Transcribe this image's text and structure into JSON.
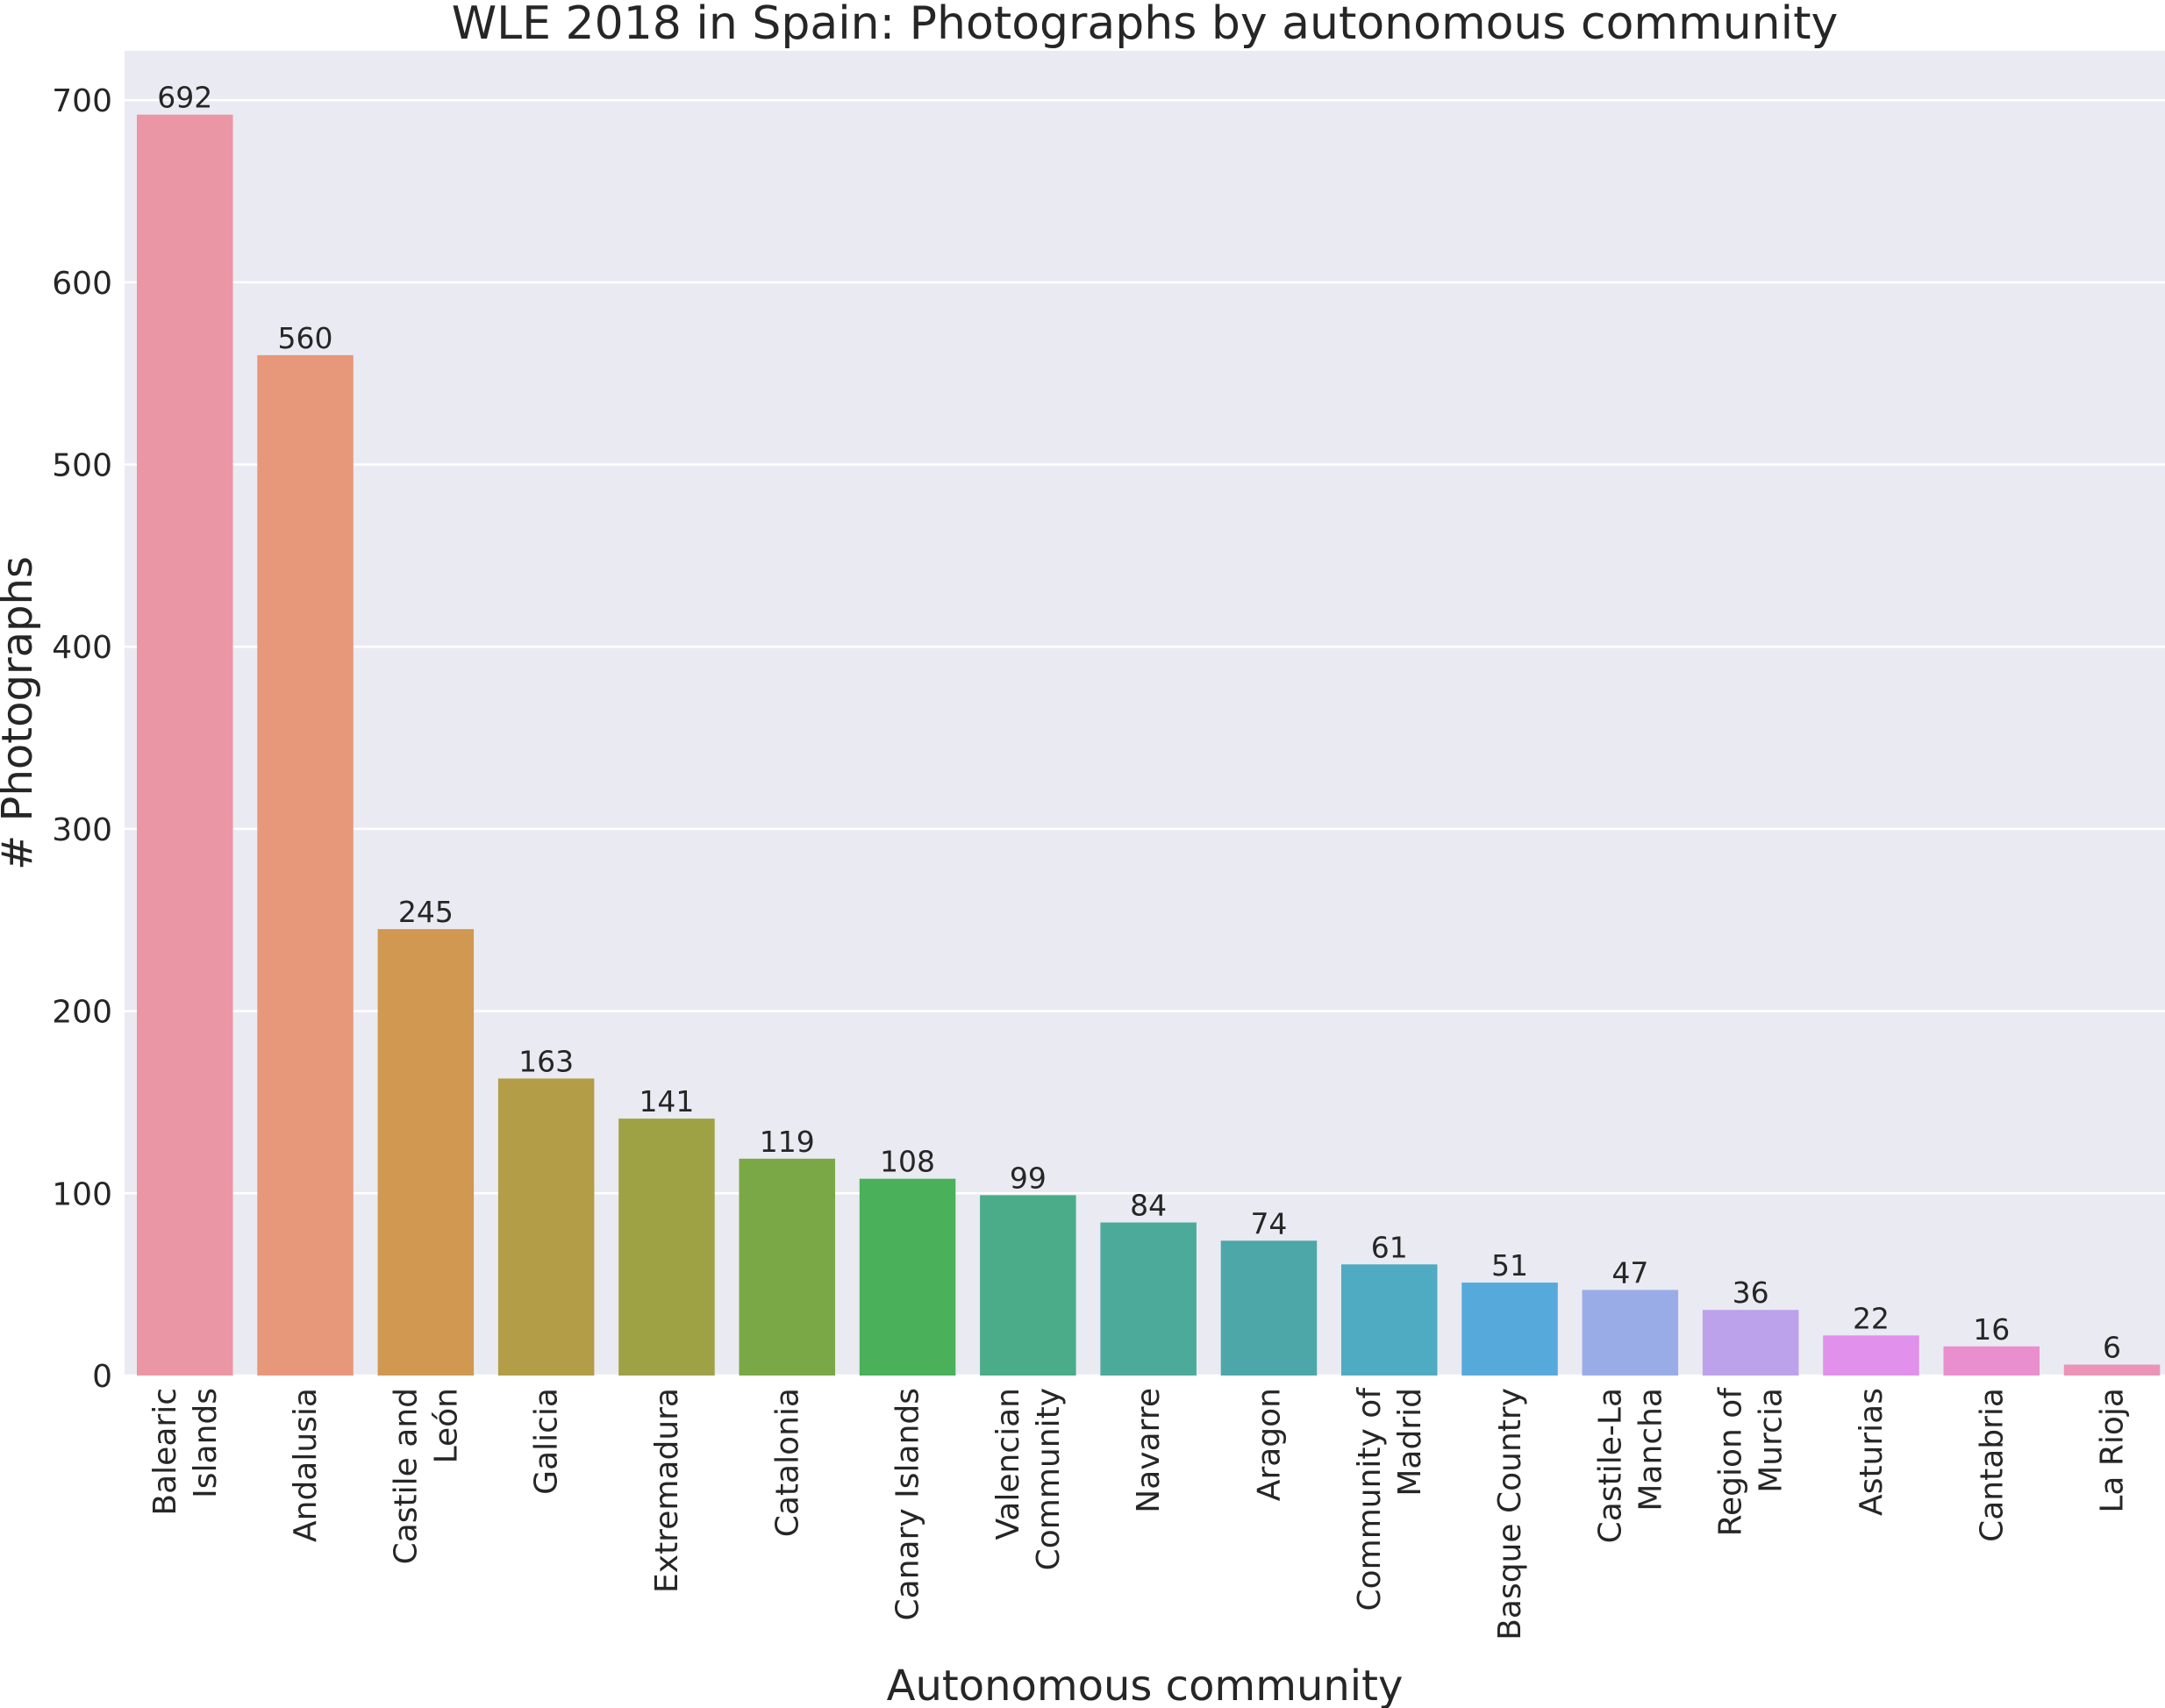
{
  "chart_data": {
    "type": "bar",
    "title": "WLE 2018 in Spain: Photographs by autonomous community",
    "xlabel": "Autonomous community",
    "ylabel": "# Photographs",
    "ylim": [
      0,
      727
    ],
    "yticks": [
      0,
      100,
      200,
      300,
      400,
      500,
      600,
      700
    ],
    "grid": true,
    "categories": [
      [
        "Balearic",
        "Islands"
      ],
      [
        "Andalusia"
      ],
      [
        "Castile and",
        "León"
      ],
      [
        "Galicia"
      ],
      [
        "Extremadura"
      ],
      [
        "Catalonia"
      ],
      [
        "Canary Islands"
      ],
      [
        "Valencian",
        "Community"
      ],
      [
        "Navarre"
      ],
      [
        "Aragon"
      ],
      [
        "Community of",
        "Madrid"
      ],
      [
        "Basque Country"
      ],
      [
        "Castile-La",
        "Mancha"
      ],
      [
        "Region of",
        "Murcia"
      ],
      [
        "Asturias"
      ],
      [
        "Cantabria"
      ],
      [
        "La Rioja"
      ]
    ],
    "values": [
      692,
      560,
      245,
      163,
      141,
      119,
      108,
      99,
      84,
      74,
      61,
      51,
      47,
      36,
      22,
      16,
      6
    ],
    "colors": [
      "#EB96A4",
      "#E7977A",
      "#D09850",
      "#B39D47",
      "#9FA145",
      "#7BA846",
      "#4AB059",
      "#4BAC8A",
      "#4CAA9B",
      "#4DA7A8",
      "#4FABC1",
      "#56A9DB",
      "#9AACE8",
      "#BCA2EB",
      "#E190EB",
      "#EA8FCD",
      "#EB94B8"
    ]
  }
}
